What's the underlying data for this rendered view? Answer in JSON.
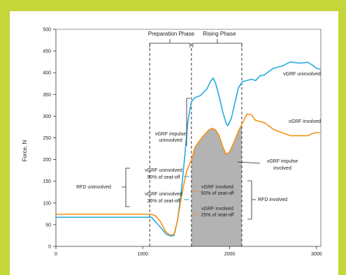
{
  "chart_data": {
    "type": "line",
    "title": "",
    "xlabel": "",
    "ylabel": "Force, N",
    "xlim": [
      0,
      3050
    ],
    "ylim": [
      0,
      500
    ],
    "x_ticks": [
      "0",
      "1000",
      "2000",
      "3000"
    ],
    "y_ticks": [
      "0",
      "50",
      "100",
      "150",
      "200",
      "250",
      "300",
      "350",
      "400",
      "450",
      "500"
    ],
    "series": [
      {
        "name": "vGRF uninvolved",
        "color": "#29a9e0",
        "points": [
          [
            0,
            67
          ],
          [
            1100,
            67
          ],
          [
            1130,
            60
          ],
          [
            1200,
            45
          ],
          [
            1270,
            28
          ],
          [
            1320,
            24
          ],
          [
            1360,
            25
          ],
          [
            1400,
            60
          ],
          [
            1440,
            120
          ],
          [
            1480,
            200
          ],
          [
            1520,
            290
          ],
          [
            1560,
            333
          ],
          [
            1600,
            343
          ],
          [
            1660,
            347
          ],
          [
            1700,
            355
          ],
          [
            1740,
            363
          ],
          [
            1780,
            380
          ],
          [
            1810,
            388
          ],
          [
            1840,
            375
          ],
          [
            1880,
            345
          ],
          [
            1920,
            310
          ],
          [
            1960,
            283
          ],
          [
            1980,
            278
          ],
          [
            2020,
            295
          ],
          [
            2060,
            330
          ],
          [
            2100,
            365
          ],
          [
            2150,
            380
          ],
          [
            2200,
            382
          ],
          [
            2250,
            385
          ],
          [
            2300,
            382
          ],
          [
            2350,
            393
          ],
          [
            2400,
            395
          ],
          [
            2500,
            410
          ],
          [
            2600,
            415
          ],
          [
            2700,
            425
          ],
          [
            2800,
            422
          ],
          [
            2900,
            424
          ],
          [
            2950,
            418
          ],
          [
            3000,
            410
          ],
          [
            3050,
            408
          ]
        ]
      },
      {
        "name": "vGRF involved",
        "color": "#f39214",
        "points": [
          [
            0,
            74
          ],
          [
            1100,
            74
          ],
          [
            1150,
            70
          ],
          [
            1200,
            58
          ],
          [
            1260,
            35
          ],
          [
            1300,
            28
          ],
          [
            1330,
            26
          ],
          [
            1360,
            28
          ],
          [
            1400,
            60
          ],
          [
            1450,
            120
          ],
          [
            1500,
            170
          ],
          [
            1540,
            190
          ],
          [
            1560,
            198
          ],
          [
            1600,
            228
          ],
          [
            1660,
            245
          ],
          [
            1700,
            255
          ],
          [
            1760,
            268
          ],
          [
            1800,
            272
          ],
          [
            1840,
            268
          ],
          [
            1880,
            255
          ],
          [
            1920,
            230
          ],
          [
            1960,
            212
          ],
          [
            2000,
            218
          ],
          [
            2050,
            240
          ],
          [
            2100,
            265
          ],
          [
            2150,
            285
          ],
          [
            2200,
            305
          ],
          [
            2250,
            303
          ],
          [
            2300,
            290
          ],
          [
            2400,
            285
          ],
          [
            2500,
            270
          ],
          [
            2600,
            262
          ],
          [
            2700,
            255
          ],
          [
            2800,
            255
          ],
          [
            2900,
            255
          ],
          [
            2950,
            260
          ],
          [
            3000,
            262
          ],
          [
            3050,
            262
          ]
        ]
      }
    ],
    "phases": [
      {
        "label": "Preparation Phase",
        "x_start": 1080,
        "x_end": 1560
      },
      {
        "label": "Rising Phase",
        "x_start": 1560,
        "x_end": 2140
      }
    ],
    "annotations": {
      "vgrf_impulse_uninvolved_line1": "vGRF impulse",
      "vgrf_impulse_uninvolved_line2": "uninvolved",
      "vgrf_impulse_involved_line1": "vGRF impulse",
      "vgrf_impulse_involved_line2": "involved",
      "vgrf_unc_50_line1": "vGRF uninvolved",
      "vgrf_unc_50_line2": "50% of seat-off",
      "vgrf_unc_25_line1": "vGRF uninvolved",
      "vgrf_unc_25_line2": "25% of seat-off",
      "vgrf_inv_50_line1": "vGRF involved",
      "vgrf_inv_50_line2": "50% of seat-off",
      "vgrf_inv_25_line1": "vGRF involved",
      "vgrf_inv_25_line2": "25% of seat-off",
      "rfd_uninvolved": "RFD uninvolved",
      "rfd_involved": "RFD involved"
    },
    "colors": {
      "uninvolved": "#29a9e0",
      "involved": "#f39214",
      "shade": "#b3b3b3",
      "frame": "#c4d63a"
    },
    "grid": false
  }
}
